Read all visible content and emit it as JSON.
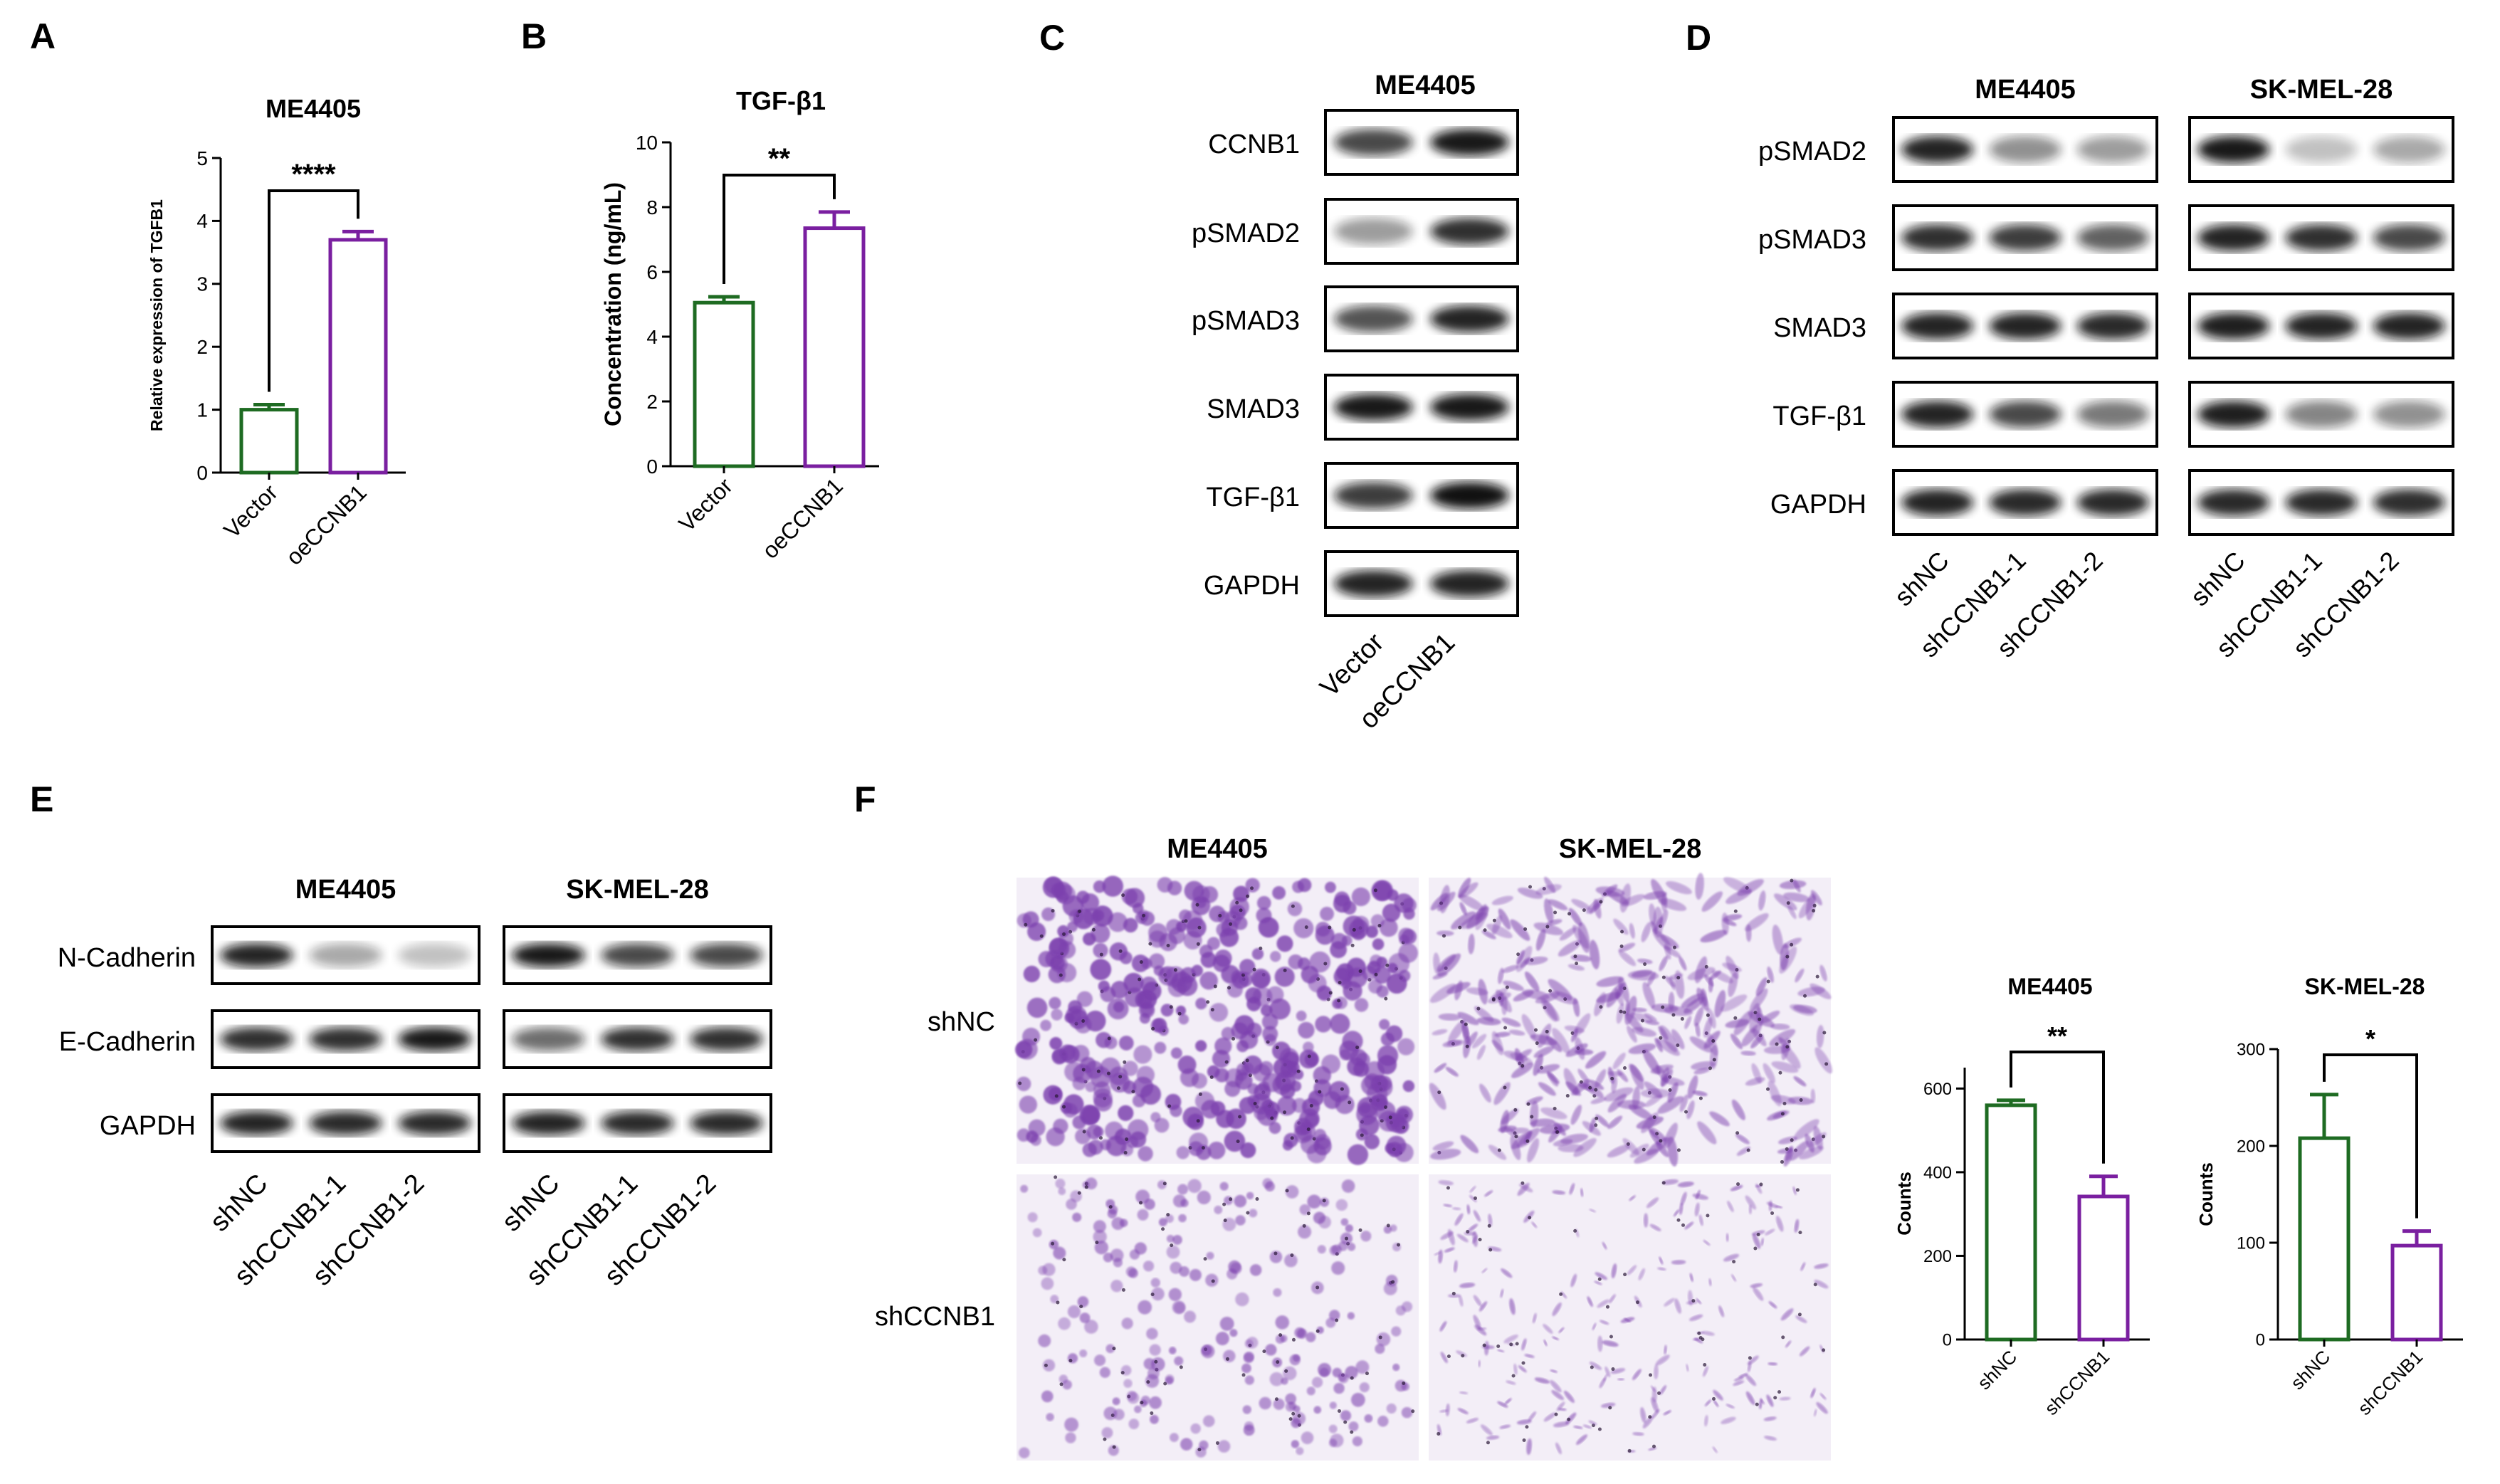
{
  "colors": {
    "green": "#1e6b22",
    "purple": "#7a1fa0",
    "stain": "#7b3fae"
  },
  "panels": {
    "A": {
      "letter": "A",
      "chart_data": {
        "type": "bar",
        "title": "ME4405",
        "ylabel": "Relative expression of TGFB1",
        "categories": [
          "Vector",
          "oeCCNB1"
        ],
        "values": [
          1.0,
          3.7
        ],
        "errors": [
          0.08,
          0.13
        ],
        "ylim": [
          0,
          5
        ],
        "yticks": [
          "0",
          "1",
          "2",
          "3",
          "4",
          "5"
        ],
        "significance": "****",
        "grid": false
      }
    },
    "B": {
      "letter": "B",
      "chart_data": {
        "type": "bar",
        "title": "TGF-β1",
        "ylabel": "Concentration (ng/mL)",
        "categories": [
          "Vector",
          "oeCCNB1"
        ],
        "values": [
          5.05,
          7.35
        ],
        "errors": [
          0.18,
          0.5
        ],
        "ylim": [
          0,
          10
        ],
        "yticks": [
          "0",
          "2",
          "4",
          "6",
          "8",
          "10"
        ],
        "significance": "**",
        "grid": false
      }
    },
    "C": {
      "letter": "C",
      "cell_line": "ME4405",
      "rows": [
        "CCNB1",
        "pSMAD2",
        "pSMAD3",
        "SMAD3",
        "TGF-β1",
        "GAPDH"
      ],
      "lanes": [
        "Vector",
        "oeCCNB1"
      ]
    },
    "D": {
      "letter": "D",
      "groups": [
        "ME4405",
        "SK-MEL-28"
      ],
      "rows": [
        "pSMAD2",
        "pSMAD3",
        "SMAD3",
        "TGF-β1",
        "GAPDH"
      ],
      "lanes": [
        "shNC",
        "shCCNB1-1",
        "shCCNB1-2"
      ]
    },
    "E": {
      "letter": "E",
      "groups": [
        "ME4405",
        "SK-MEL-28"
      ],
      "rows": [
        "N-Cadherin",
        "E-Cadherin",
        "GAPDH"
      ],
      "lanes": [
        "shNC",
        "shCCNB1-1",
        "shCCNB1-2"
      ]
    },
    "F": {
      "letter": "F",
      "image_columns": [
        "ME4405",
        "SK-MEL-28"
      ],
      "image_rows": [
        "shNC",
        "shCCNB1"
      ],
      "chart_data": [
        {
          "type": "bar",
          "title": "ME4405",
          "ylabel": "Counts",
          "categories": [
            "shNC",
            "shCCNB1"
          ],
          "values": [
            560,
            342
          ],
          "errors": [
            12,
            48
          ],
          "ylim": [
            0,
            650
          ],
          "yticks": [
            "0",
            "200",
            "400",
            "600"
          ],
          "significance": "**",
          "grid": false
        },
        {
          "type": "bar",
          "title": "SK-MEL-28",
          "ylabel": "Counts",
          "categories": [
            "shNC",
            "shCCNB1"
          ],
          "values": [
            208,
            97
          ],
          "errors": [
            45,
            15
          ],
          "ylim": [
            0,
            300
          ],
          "yticks": [
            "0",
            "100",
            "200",
            "300"
          ],
          "significance": "*",
          "grid": false
        }
      ]
    }
  }
}
